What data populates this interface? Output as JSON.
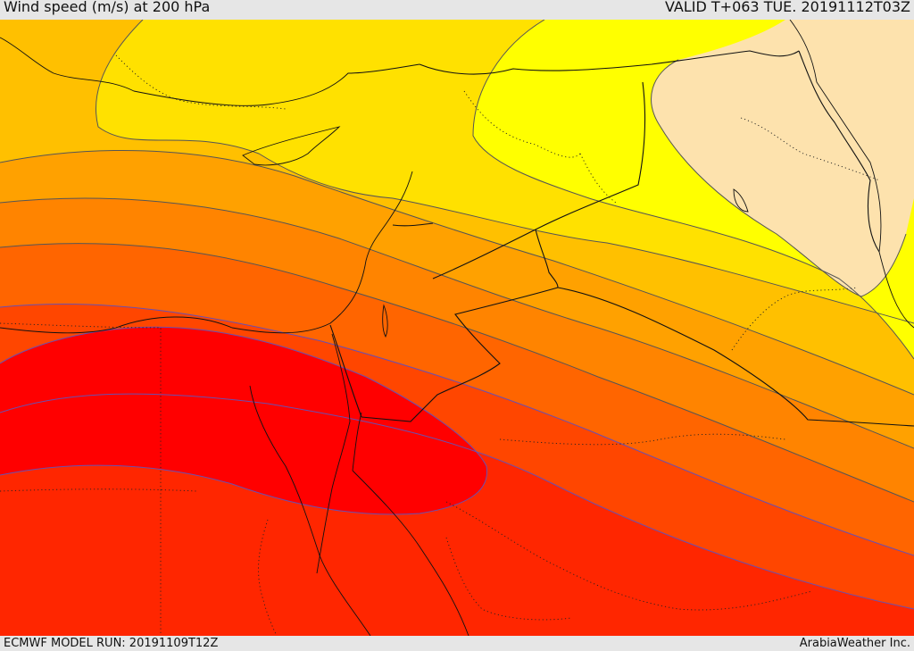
{
  "header": {
    "title": "Wind speed (m/s) at 200 hPa",
    "valid": "VALID T+063 TUE. 20191112T03Z"
  },
  "footer": {
    "model_run": "ECMWF MODEL RUN: 20191109T12Z",
    "credit": "ArabiaWeather Inc."
  },
  "map": {
    "field": "wind speed at 200 hPa",
    "palette": {
      "band_0": "#fde2ad",
      "band_1": "#ffff00",
      "band_2": "#ffe100",
      "band_3": "#ffc000",
      "band_4": "#ffa100",
      "band_5": "#ff8400",
      "band_6": "#ff6500",
      "band_7": "#ff4600",
      "band_8": "#ff2600",
      "band_9": "#ff0000"
    },
    "contour_colors": {
      "warm": "#555555",
      "hot": "#6a4fb0"
    },
    "layers": [
      "filled-contours",
      "contour-lines",
      "coastlines",
      "country-borders",
      "internal-borders"
    ]
  }
}
